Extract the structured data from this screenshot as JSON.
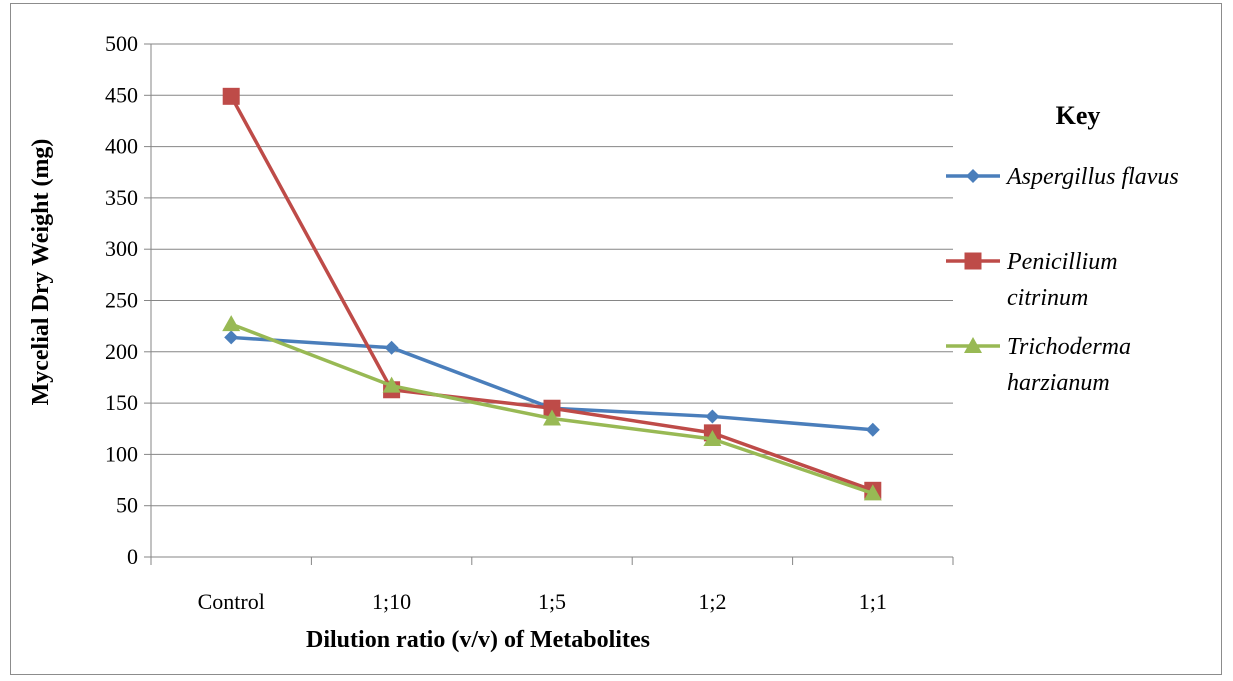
{
  "chart_data": {
    "type": "line",
    "title": "",
    "xlabel": "Dilution  ratio (v/v) of Metabolites",
    "ylabel": "Mycelial Dry Weight  (mg)",
    "categories": [
      "Control",
      "1;10",
      "1;5",
      "1;2",
      "1;1"
    ],
    "ylim": [
      0,
      500
    ],
    "yticks": [
      0,
      50,
      100,
      150,
      200,
      250,
      300,
      350,
      400,
      450,
      500
    ],
    "grid": true,
    "legend_title": "Key",
    "legend_position": "right",
    "series": [
      {
        "name": "Aspergillus flavus",
        "name_lines": [
          "Aspergillus flavus"
        ],
        "values": [
          214,
          204,
          145,
          137,
          124
        ],
        "color": "#4a7ebb",
        "marker": "diamond"
      },
      {
        "name": "Penicillium citrinum",
        "name_lines": [
          "Penicillium",
          "citrinum"
        ],
        "values": [
          449,
          163,
          145,
          121,
          65
        ],
        "color": "#be4b48",
        "marker": "square"
      },
      {
        "name": "Trichoderma harzianum",
        "name_lines": [
          "Trichoderma",
          "harzianum"
        ],
        "values": [
          227,
          167,
          135,
          115,
          62
        ],
        "color": "#98b954",
        "marker": "triangle"
      }
    ]
  }
}
